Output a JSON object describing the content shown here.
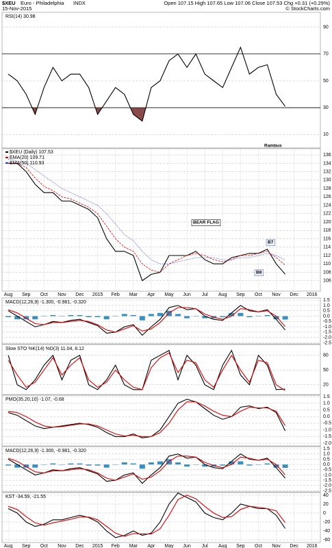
{
  "header": {
    "symbol": "$XEU",
    "name": "Euro - Philadelphia",
    "exchange": "INDX",
    "date": "15-Nov-2015",
    "quote": "Open 107.15 High 107.65 Low 107.06 Close 107.53 Chg +0.31 (+0.29%)",
    "credit": "© StockCharts.com"
  },
  "chart_data": [
    {
      "type": "line",
      "title": "RSI(14) 30.98",
      "x": [
        0,
        0.5,
        1,
        1.5,
        2,
        2.5,
        3,
        3.5,
        4,
        4.5,
        5,
        5.5,
        6,
        6.5,
        7,
        7.5,
        8,
        8.5,
        9,
        9.5,
        10,
        10.5,
        11,
        11.5,
        12,
        12.5,
        13,
        13.5,
        14,
        14.5,
        15,
        15.5
      ],
      "xlim": [
        -0.35,
        17.47
      ],
      "ylim": [
        0,
        101
      ],
      "yticks": [
        10,
        30,
        50,
        70,
        90
      ],
      "grid": true,
      "reference_lines": [
        70,
        30
      ],
      "fill_below": 30,
      "fill_color": "#8b4a4a",
      "series": [
        {
          "color": "#000000",
          "values": [
            55,
            50,
            40,
            25,
            45,
            60,
            50,
            55,
            55,
            45,
            25,
            35,
            45,
            40,
            25,
            20,
            45,
            50,
            65,
            70,
            60,
            70,
            55,
            50,
            45,
            60,
            75,
            55,
            60,
            62,
            40,
            30.98
          ]
        }
      ],
      "annotations": [
        {
          "text": "Rambus"
        }
      ]
    },
    {
      "type": "line",
      "x": [
        0,
        0.5,
        1,
        1.5,
        2,
        2.5,
        3,
        3.5,
        4,
        4.5,
        5,
        5.5,
        6,
        6.5,
        7,
        7.5,
        8,
        8.5,
        9,
        9.5,
        10,
        10.5,
        11,
        11.5,
        12,
        12.5,
        13,
        13.5,
        14,
        14.5,
        15,
        15.5
      ],
      "xlim": [
        -0.35,
        17.47
      ],
      "ylim": [
        103.5,
        137.5
      ],
      "yticks": [
        106,
        108,
        110,
        112,
        114,
        116,
        118,
        120,
        122,
        124,
        126,
        128,
        130,
        132,
        134,
        136
      ],
      "grid": true,
      "xticks": [
        {
          "value": 0,
          "label": "Aug"
        },
        {
          "value": 1,
          "label": "Sep"
        },
        {
          "value": 2,
          "label": "Oct"
        },
        {
          "value": 3,
          "label": "Nov"
        },
        {
          "value": 4,
          "label": "Dec"
        },
        {
          "value": 5,
          "label": "2015"
        },
        {
          "value": 6,
          "label": "Feb"
        },
        {
          "value": 7,
          "label": "Mar"
        },
        {
          "value": 8,
          "label": "Apr"
        },
        {
          "value": 9,
          "label": "May"
        },
        {
          "value": 10,
          "label": "Jun"
        },
        {
          "value": 11,
          "label": "Jul"
        },
        {
          "value": 12,
          "label": "Aug"
        },
        {
          "value": 13,
          "label": "Sep"
        },
        {
          "value": 14,
          "label": "Oct"
        },
        {
          "value": 15,
          "label": "Nov"
        },
        {
          "value": 16,
          "label": "Dec"
        },
        {
          "value": 17,
          "label": "2016"
        }
      ],
      "series": [
        {
          "name": "$XEU (Daily) 107.53",
          "color": "#000000",
          "values": [
            134,
            134,
            132,
            129,
            127,
            127,
            125,
            125,
            124,
            123,
            121,
            116,
            113,
            113,
            112,
            106,
            107.5,
            108,
            112,
            112,
            112,
            113,
            111,
            110,
            110,
            111.5,
            112,
            112.5,
            112.5,
            113.5,
            110,
            107.53
          ]
        },
        {
          "name": "EMA(20) 109.71",
          "color": "#dd0000",
          "style": "dashed",
          "values": [
            134,
            134,
            133,
            130.5,
            128.5,
            127.5,
            126,
            125.5,
            124.5,
            123.5,
            122,
            119,
            116,
            114,
            113,
            110,
            108.5,
            108,
            110,
            111,
            112,
            112.5,
            112,
            111,
            110.5,
            111,
            112,
            112,
            112.5,
            113,
            111.5,
            109.71
          ]
        },
        {
          "name": "EMA(50) 110.93",
          "color": "#2233cc",
          "style": "dotted",
          "values": [
            135,
            134.5,
            134,
            132.5,
            131,
            129.5,
            128,
            127,
            126,
            125,
            124,
            122,
            119.5,
            117,
            115.5,
            113,
            111,
            110,
            110,
            110.5,
            111,
            111.5,
            111.5,
            111.5,
            111,
            111,
            111.5,
            111.5,
            112,
            112.5,
            112,
            110.93
          ]
        }
      ],
      "annotations": [
        {
          "text": "BEAR FLAG"
        },
        {
          "text": "B7"
        },
        {
          "text": "B8"
        }
      ]
    },
    {
      "type": "line",
      "title": "MACD(12,26,9) -1.300, -0.981, -0.320",
      "x": [
        0,
        0.5,
        1,
        1.5,
        2,
        2.5,
        3,
        3.5,
        4,
        4.5,
        5,
        5.5,
        6,
        6.5,
        7,
        7.5,
        8,
        8.5,
        9,
        9.5,
        10,
        10.5,
        11,
        11.5,
        12,
        12.5,
        13,
        13.5,
        14,
        14.5,
        15,
        15.5
      ],
      "xlim": [
        -0.35,
        17.47
      ],
      "ylim": [
        -2.6,
        1.7
      ],
      "yticks": [
        1.5,
        {
          "value": 1,
          "label": "1.0"
        },
        0.5,
        {
          "value": 0,
          "label": "0.0"
        },
        -0.5,
        {
          "value": -1,
          "label": "-1.0"
        },
        -1.5,
        {
          "value": -2,
          "label": "-2.0"
        },
        -2.5
      ],
      "grid": true,
      "series": [
        {
          "color": "#3a8fc0",
          "style": "histogram",
          "values": [
            -0.1,
            -0.3,
            -0.3,
            -0.3,
            0,
            0.1,
            0,
            0.1,
            0.1,
            -0.1,
            -0.1,
            -0.3,
            0,
            0.2,
            0.1,
            -0.4,
            0.2,
            0.3,
            0.5,
            0.2,
            -0.2,
            0,
            -0.2,
            -0.2,
            -0.1,
            0.3,
            0.3,
            -0.1,
            0,
            0.1,
            -0.3,
            -0.32
          ]
        },
        {
          "color": "#000000",
          "values": [
            0.5,
            0,
            -0.5,
            -1,
            -0.8,
            -0.5,
            -0.6,
            -0.4,
            -0.3,
            -0.6,
            -0.9,
            -1.6,
            -1.5,
            -1.0,
            -0.8,
            -1.8,
            -1.0,
            -0.3,
            0.8,
            1.0,
            0.6,
            0.7,
            0.0,
            -0.3,
            -0.4,
            0.3,
            1.0,
            0.5,
            0.4,
            0.6,
            -0.3,
            -1.3
          ]
        },
        {
          "color": "#dd0000",
          "values": [
            0.6,
            0.3,
            -0.2,
            -0.7,
            -0.8,
            -0.6,
            -0.6,
            -0.5,
            -0.4,
            -0.5,
            -0.8,
            -1.3,
            -1.5,
            -1.2,
            -0.9,
            -1.4,
            -1.2,
            -0.6,
            0.3,
            0.8,
            0.8,
            0.7,
            0.2,
            -0.1,
            -0.3,
            0.0,
            0.7,
            0.6,
            0.4,
            0.5,
            0.0,
            -0.981
          ]
        }
      ]
    },
    {
      "type": "line",
      "title": "Slow STO %K(14) %D(3) 11.04, 8.12",
      "x": [
        0,
        0.5,
        1,
        1.5,
        2,
        2.5,
        3,
        3.5,
        4,
        4.5,
        5,
        5.5,
        6,
        6.5,
        7,
        7.5,
        8,
        8.5,
        9,
        9.5,
        10,
        10.5,
        11,
        11.5,
        12,
        12.5,
        13,
        13.5,
        14,
        14.5,
        15,
        15.5
      ],
      "xlim": [
        -0.35,
        17.47
      ],
      "ylim": [
        0,
        102
      ],
      "yticks": [
        20,
        50,
        80
      ],
      "grid": true,
      "series": [
        {
          "color": "#000000",
          "values": [
            80,
            20,
            10,
            30,
            60,
            80,
            30,
            70,
            80,
            20,
            10,
            30,
            60,
            20,
            10,
            10,
            70,
            80,
            90,
            30,
            80,
            60,
            20,
            10,
            60,
            90,
            40,
            20,
            80,
            60,
            10,
            11.04
          ]
        },
        {
          "color": "#dd0000",
          "values": [
            70,
            40,
            15,
            25,
            50,
            75,
            40,
            60,
            75,
            30,
            15,
            25,
            50,
            30,
            15,
            10,
            55,
            75,
            85,
            45,
            70,
            65,
            30,
            15,
            50,
            80,
            50,
            25,
            70,
            65,
            20,
            8.12
          ]
        }
      ]
    },
    {
      "type": "line",
      "title": "PMO(35,20,10) -1.07, -0.68",
      "x": [
        0,
        0.5,
        1,
        1.5,
        2,
        2.5,
        3,
        3.5,
        4,
        4.5,
        5,
        5.5,
        6,
        6.5,
        7,
        7.5,
        8,
        8.5,
        9,
        9.5,
        10,
        10.5,
        11,
        11.5,
        12,
        12.5,
        13,
        13.5,
        14,
        14.5,
        15,
        15.5
      ],
      "xlim": [
        -0.35,
        17.47
      ],
      "ylim": [
        -2.2,
        1.6
      ],
      "yticks": [
        1.5,
        {
          "value": 1,
          "label": "1.0"
        },
        0.5,
        {
          "value": 0,
          "label": "0.0"
        },
        -0.5,
        {
          "value": -1,
          "label": "-1.0"
        },
        -1.5,
        {
          "value": -2,
          "label": "-2.0"
        }
      ],
      "grid": true,
      "series": [
        {
          "color": "#000000",
          "values": [
            0.3,
            0.1,
            -0.3,
            -0.7,
            -0.9,
            -0.8,
            -0.7,
            -0.6,
            -0.5,
            -0.6,
            -0.8,
            -1.2,
            -1.5,
            -1.5,
            -1.3,
            -1.6,
            -1.5,
            -1.0,
            0,
            1.0,
            1.3,
            1.1,
            0.6,
            0.1,
            -0.2,
            0.0,
            0.7,
            0.8,
            0.6,
            0.7,
            0.3,
            -1.07
          ]
        },
        {
          "color": "#dd0000",
          "values": [
            0.4,
            0.3,
            0.0,
            -0.4,
            -0.7,
            -0.8,
            -0.75,
            -0.65,
            -0.55,
            -0.55,
            -0.7,
            -1.0,
            -1.3,
            -1.45,
            -1.4,
            -1.5,
            -1.5,
            -1.2,
            -0.5,
            0.5,
            1.1,
            1.1,
            0.8,
            0.4,
            0.1,
            0.0,
            0.4,
            0.7,
            0.65,
            0.65,
            0.4,
            -0.68
          ]
        }
      ]
    },
    {
      "type": "line",
      "title": "MACD(12,26,9) -1.300, -0.981, -0.320",
      "x": [
        0,
        0.5,
        1,
        1.5,
        2,
        2.5,
        3,
        3.5,
        4,
        4.5,
        5,
        5.5,
        6,
        6.5,
        7,
        7.5,
        8,
        8.5,
        9,
        9.5,
        10,
        10.5,
        11,
        11.5,
        12,
        12.5,
        13,
        13.5,
        14,
        14.5,
        15,
        15.5
      ],
      "xlim": [
        -0.35,
        17.47
      ],
      "ylim": [
        -2.6,
        1.7
      ],
      "yticks": [
        1.5,
        {
          "value": 1,
          "label": "1.0"
        },
        0.5,
        {
          "value": 0,
          "label": "0.0"
        },
        -0.5,
        {
          "value": -1,
          "label": "-1.0"
        },
        -1.5,
        {
          "value": -2,
          "label": "-2.0"
        },
        -2.5
      ],
      "grid": true,
      "series": [
        {
          "color": "#3a8fc0",
          "style": "histogram",
          "values": [
            -0.1,
            -0.3,
            -0.3,
            -0.3,
            0,
            0.1,
            0,
            0.1,
            0.1,
            -0.1,
            -0.1,
            -0.3,
            0,
            0.2,
            0.1,
            -0.4,
            0.2,
            0.3,
            0.5,
            0.2,
            -0.2,
            0,
            -0.2,
            -0.2,
            -0.1,
            0.3,
            0.3,
            -0.1,
            0,
            0.1,
            -0.3,
            -0.32
          ]
        },
        {
          "color": "#000000",
          "values": [
            0.5,
            0,
            -0.5,
            -1,
            -0.8,
            -0.5,
            -0.6,
            -0.4,
            -0.3,
            -0.6,
            -0.9,
            -1.6,
            -1.5,
            -1.0,
            -0.8,
            -1.8,
            -1.0,
            -0.3,
            0.8,
            1.0,
            0.6,
            0.7,
            0.0,
            -0.3,
            -0.4,
            0.3,
            1.0,
            0.5,
            0.4,
            0.6,
            -0.3,
            -1.3
          ]
        },
        {
          "color": "#dd0000",
          "values": [
            0.6,
            0.3,
            -0.2,
            -0.7,
            -0.8,
            -0.6,
            -0.6,
            -0.5,
            -0.4,
            -0.5,
            -0.8,
            -1.3,
            -1.5,
            -1.2,
            -0.9,
            -1.4,
            -1.2,
            -0.6,
            0.3,
            0.8,
            0.8,
            0.7,
            0.2,
            -0.1,
            -0.3,
            0.0,
            0.7,
            0.6,
            0.4,
            0.5,
            0.0,
            -0.981
          ]
        }
      ]
    },
    {
      "type": "line",
      "title": "KST -34.59, -21.55",
      "x": [
        0,
        0.5,
        1,
        1.5,
        2,
        2.5,
        3,
        3.5,
        4,
        4.5,
        5,
        5.5,
        6,
        6.5,
        7,
        7.5,
        8,
        8.5,
        9,
        9.5,
        10,
        10.5,
        11,
        11.5,
        12,
        12.5,
        13,
        13.5,
        14,
        14.5,
        15,
        15.5
      ],
      "xlim": [
        -0.35,
        17.47
      ],
      "ylim": [
        -66,
        46
      ],
      "yticks": [
        -60,
        -40,
        -20,
        0,
        20,
        40
      ],
      "grid": true,
      "xticks": [
        {
          "value": 0,
          "label": "Aug"
        },
        {
          "value": 1,
          "label": "Sep"
        },
        {
          "value": 2,
          "label": "Oct"
        },
        {
          "value": 3,
          "label": "Nov"
        },
        {
          "value": 4,
          "label": "Dec"
        },
        {
          "value": 5,
          "label": "2015"
        },
        {
          "value": 6,
          "label": "Feb"
        },
        {
          "value": 7,
          "label": "Mar"
        },
        {
          "value": 8,
          "label": "Apr"
        },
        {
          "value": 9,
          "label": "May"
        },
        {
          "value": 10,
          "label": "Jun"
        },
        {
          "value": 11,
          "label": "Jul"
        },
        {
          "value": 12,
          "label": "Aug"
        },
        {
          "value": 13,
          "label": "Sep"
        },
        {
          "value": 14,
          "label": "Oct"
        },
        {
          "value": 15,
          "label": "Nov"
        },
        {
          "value": 16,
          "label": "Dec"
        },
        {
          "value": 17,
          "label": "2016"
        }
      ],
      "series": [
        {
          "color": "#000000",
          "values": [
            10,
            0,
            -20,
            -30,
            -25,
            -15,
            -15,
            -10,
            -5,
            -10,
            -20,
            -40,
            -55,
            -50,
            -40,
            -50,
            -45,
            -20,
            20,
            45,
            35,
            25,
            0,
            -10,
            -15,
            0,
            20,
            15,
            10,
            10,
            -5,
            -34.59
          ]
        },
        {
          "color": "#dd0000",
          "values": [
            15,
            8,
            -8,
            -22,
            -27,
            -22,
            -18,
            -14,
            -9,
            -9,
            -15,
            -30,
            -45,
            -52,
            -46,
            -47,
            -47,
            -35,
            -5,
            30,
            40,
            32,
            15,
            0,
            -10,
            -8,
            8,
            15,
            13,
            10,
            5,
            -21.55
          ]
        }
      ]
    }
  ]
}
